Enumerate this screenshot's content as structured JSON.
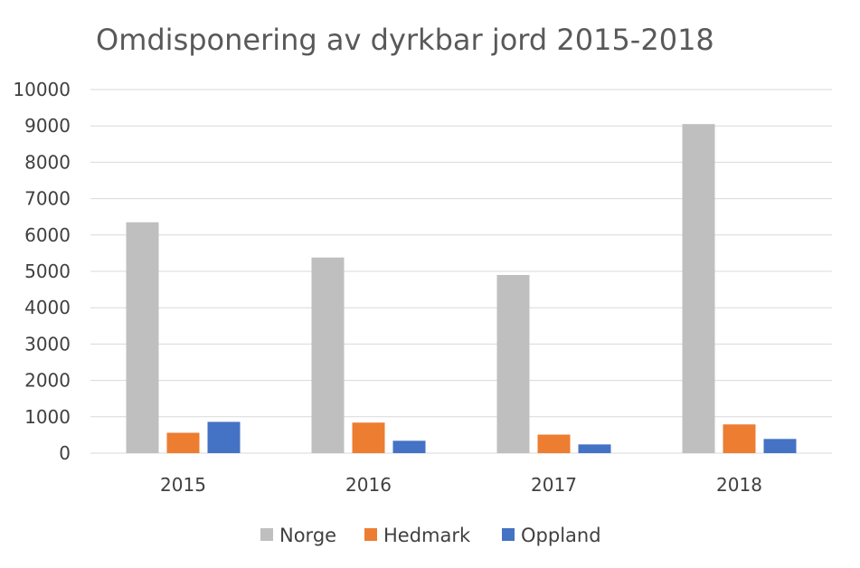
{
  "chart_data": {
    "type": "bar",
    "title": "Omdisponering av dyrkbar jord 2015-2018",
    "xlabel": "",
    "ylabel": "",
    "categories": [
      "2015",
      "2016",
      "2017",
      "2018"
    ],
    "series": [
      {
        "name": "Norge",
        "color": "#bfbfbf",
        "values": [
          6350,
          5380,
          4900,
          9050
        ]
      },
      {
        "name": "Hedmark",
        "color": "#ed7d31",
        "values": [
          560,
          840,
          510,
          790
        ]
      },
      {
        "name": "Oppland",
        "color": "#4472c4",
        "values": [
          860,
          340,
          240,
          390
        ]
      }
    ],
    "ylim": [
      0,
      10000
    ],
    "yticks": [
      "0",
      "1000",
      "2000",
      "3000",
      "4000",
      "5000",
      "6000",
      "7000",
      "8000",
      "9000",
      "10000"
    ],
    "grid": true,
    "legend_position": "bottom"
  }
}
